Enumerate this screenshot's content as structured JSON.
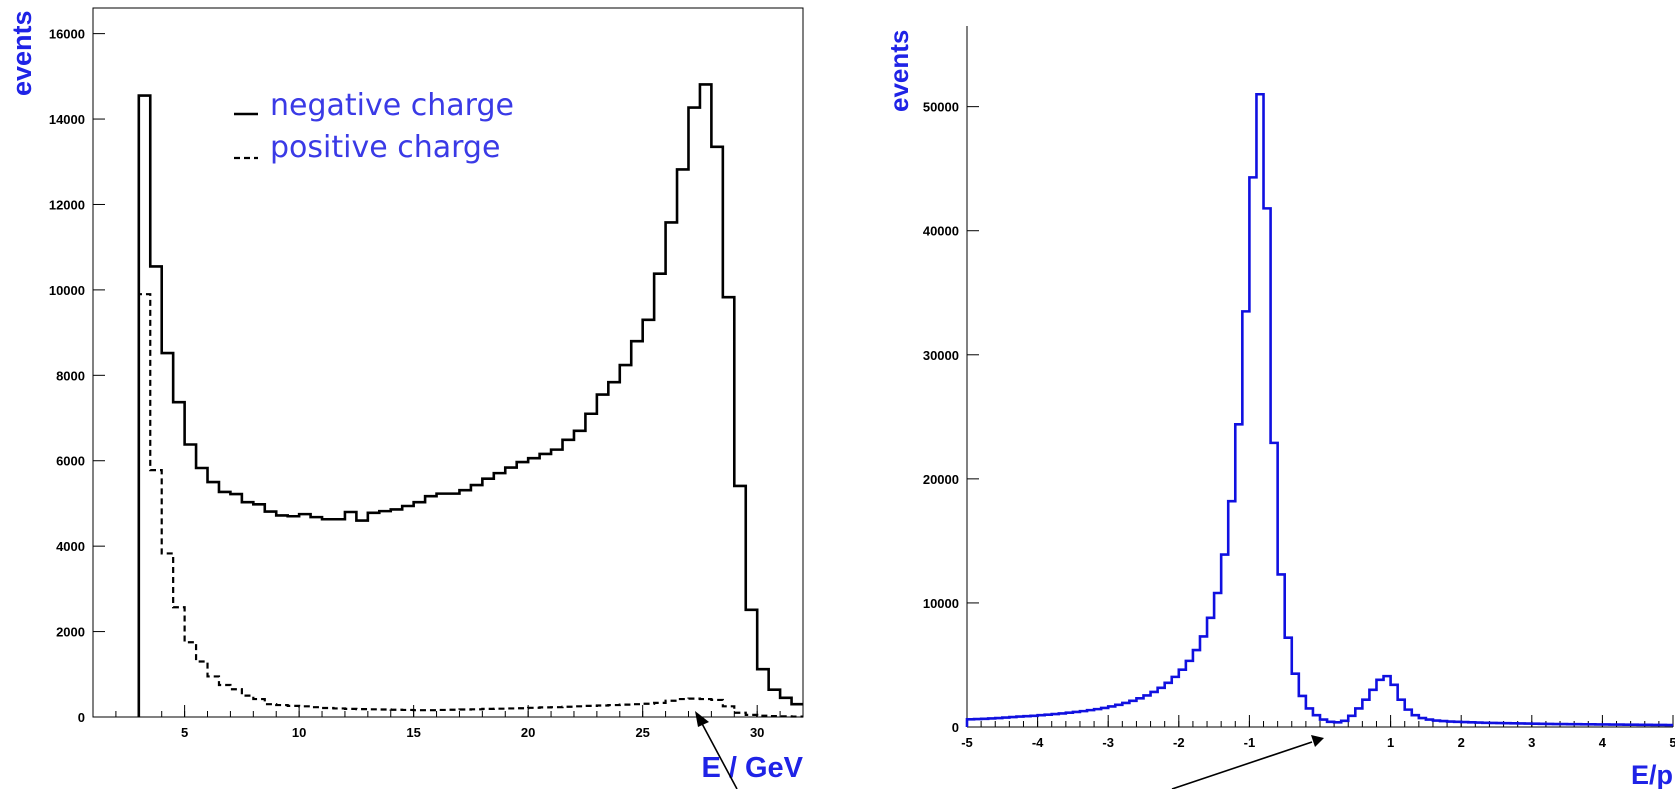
{
  "colors": {
    "left_histograms": "#000000",
    "right_histogram": "#1010e0",
    "axis_titles": "#1f23e6",
    "legend_text": "#3a3ae6"
  },
  "chart_data": [
    {
      "type": "line",
      "xlabel": "E / GeV",
      "ylabel": "events",
      "xlim": [
        1,
        32
      ],
      "ylim": [
        0,
        16600
      ],
      "xticks": [
        "5",
        "10",
        "15",
        "20",
        "25",
        "30"
      ],
      "yticks": [
        "0",
        "2000",
        "4000",
        "6000",
        "8000",
        "10000",
        "12000",
        "14000",
        "16000"
      ],
      "legend_position": "top-center",
      "series": [
        {
          "name": "negative charge",
          "style": "solid",
          "bin_edges": [
            3,
            3.5,
            4,
            4.5,
            5,
            5.5,
            6,
            6.5,
            7,
            7.5,
            8,
            8.5,
            9,
            9.5,
            10,
            10.5,
            11,
            11.5,
            12,
            12.5,
            13,
            13.5,
            14,
            14.5,
            15,
            15.5,
            16,
            16.5,
            17,
            17.5,
            18,
            18.5,
            19,
            19.5,
            20,
            20.5,
            21,
            21.5,
            22,
            22.5,
            23,
            23.5,
            24,
            24.5,
            25,
            25.5,
            26,
            26.5,
            27,
            27.5,
            28,
            28.5,
            29,
            29.5,
            30,
            30.5,
            31,
            31.5,
            32
          ],
          "values": [
            14550,
            10550,
            8520,
            7370,
            6380,
            5830,
            5500,
            5270,
            5220,
            5030,
            4980,
            4810,
            4720,
            4700,
            4750,
            4680,
            4630,
            4630,
            4800,
            4600,
            4780,
            4820,
            4860,
            4940,
            5030,
            5170,
            5230,
            5230,
            5310,
            5430,
            5580,
            5710,
            5840,
            5970,
            6060,
            6160,
            6260,
            6490,
            6700,
            7100,
            7550,
            7840,
            8240,
            8800,
            9300,
            10380,
            11580,
            12820,
            14270,
            14810,
            13350,
            9830,
            5410,
            2510,
            1120,
            640,
            450,
            300
          ]
        },
        {
          "name": "positive charge",
          "style": "dashed",
          "bin_edges": [
            3,
            3.5,
            4,
            4.5,
            5,
            5.5,
            6,
            6.5,
            7,
            7.5,
            8,
            8.5,
            9,
            9.5,
            10,
            10.5,
            11,
            11.5,
            12,
            12.5,
            13,
            13.5,
            14,
            14.5,
            15,
            15.5,
            16,
            16.5,
            17,
            17.5,
            18,
            18.5,
            19,
            19.5,
            20,
            20.5,
            21,
            21.5,
            22,
            22.5,
            23,
            23.5,
            24,
            24.5,
            25,
            25.5,
            26,
            26.5,
            27,
            27.5,
            28,
            28.5,
            29,
            29.5,
            30,
            30.5,
            31,
            31.5,
            32
          ],
          "values": [
            9900,
            5780,
            3830,
            2570,
            1750,
            1300,
            950,
            750,
            650,
            500,
            420,
            300,
            280,
            260,
            250,
            230,
            210,
            200,
            190,
            185,
            180,
            175,
            170,
            165,
            160,
            160,
            165,
            170,
            175,
            180,
            190,
            195,
            200,
            205,
            215,
            225,
            230,
            240,
            250,
            260,
            270,
            280,
            290,
            300,
            310,
            330,
            380,
            420,
            430,
            420,
            400,
            250,
            100,
            50,
            30,
            20,
            15,
            10
          ]
        }
      ]
    },
    {
      "type": "line",
      "xlabel": "E/p",
      "ylabel": "events",
      "xlim": [
        -5,
        5
      ],
      "ylim": [
        0,
        56500
      ],
      "xticks": [
        "-5",
        "-4",
        "-3",
        "-2",
        "-1",
        "1",
        "2",
        "3",
        "4",
        "5"
      ],
      "yticks": [
        "0",
        "10000",
        "20000",
        "30000",
        "40000",
        "50000"
      ],
      "series": [
        {
          "style": "solid",
          "bin_edges": [
            -5,
            -4.9,
            -4.8,
            -4.7,
            -4.6,
            -4.5,
            -4.4,
            -4.3,
            -4.2,
            -4.1,
            -4,
            -3.9,
            -3.8,
            -3.7,
            -3.6,
            -3.5,
            -3.4,
            -3.3,
            -3.2,
            -3.1,
            -3,
            -2.9,
            -2.8,
            -2.7,
            -2.6,
            -2.5,
            -2.4,
            -2.3,
            -2.2,
            -2.1,
            -2,
            -1.9,
            -1.8,
            -1.7,
            -1.6,
            -1.5,
            -1.4,
            -1.3,
            -1.2,
            -1.1,
            -1,
            -0.9,
            -0.8,
            -0.7,
            -0.6,
            -0.5,
            -0.4,
            -0.3,
            -0.2,
            -0.1,
            0,
            0.1,
            0.2,
            0.3,
            0.4,
            0.5,
            0.6,
            0.7,
            0.8,
            0.9,
            1,
            1.1,
            1.2,
            1.3,
            1.4,
            1.5,
            1.6,
            1.7,
            1.8,
            1.9,
            2,
            2.1,
            2.2,
            2.3,
            2.4,
            2.5,
            2.6,
            2.7,
            2.8,
            2.9,
            3,
            3.1,
            3.2,
            3.3,
            3.4,
            3.5,
            3.6,
            3.7,
            3.8,
            3.9,
            4,
            4.1,
            4.2,
            4.3,
            4.4,
            4.5,
            4.6,
            4.7,
            4.8,
            4.9,
            5
          ],
          "values": [
            620,
            640,
            660,
            690,
            720,
            760,
            800,
            840,
            870,
            900,
            950,
            990,
            1040,
            1090,
            1150,
            1210,
            1280,
            1360,
            1440,
            1540,
            1660,
            1790,
            1940,
            2110,
            2310,
            2540,
            2830,
            3160,
            3560,
            4040,
            4620,
            5330,
            6200,
            7300,
            8800,
            10800,
            13900,
            18200,
            24400,
            33500,
            44300,
            51000,
            41800,
            22900,
            12300,
            7200,
            4300,
            2500,
            1500,
            950,
            600,
            420,
            380,
            500,
            900,
            1500,
            2200,
            3000,
            3800,
            4100,
            3400,
            2200,
            1400,
            950,
            720,
            600,
            520,
            480,
            440,
            420,
            400,
            380,
            360,
            340,
            330,
            320,
            310,
            300,
            290,
            280,
            270,
            260,
            250,
            240,
            235,
            230,
            225,
            220,
            215,
            210,
            205,
            200,
            195,
            190,
            185,
            180,
            175,
            170,
            165,
            160
          ]
        }
      ]
    }
  ]
}
